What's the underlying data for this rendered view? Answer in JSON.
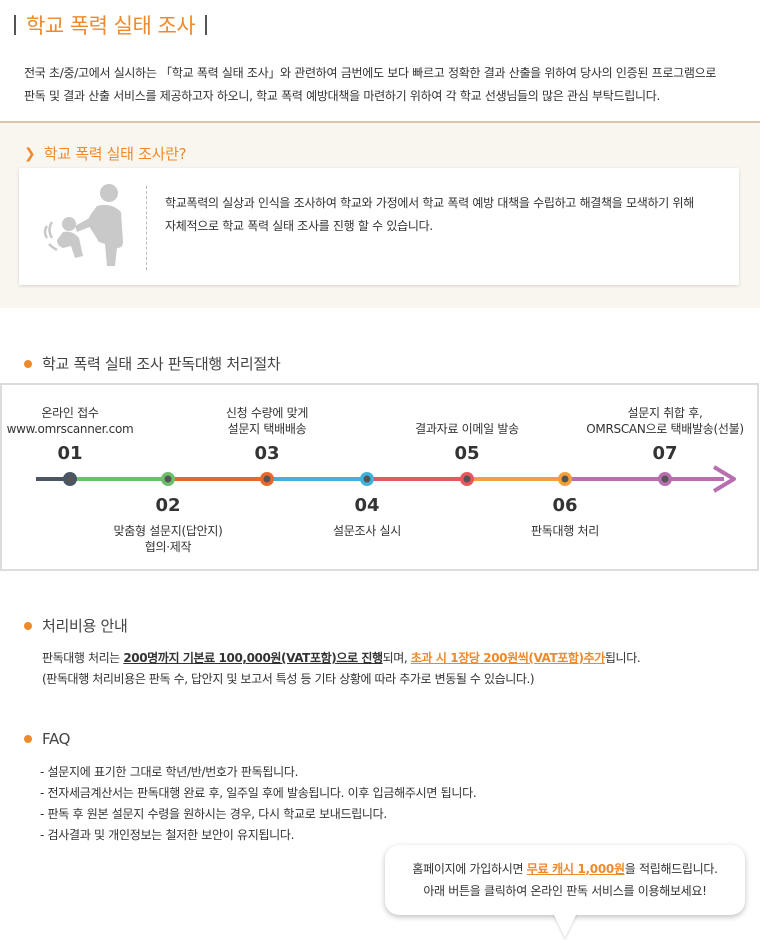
{
  "page_title": "학교 폭력 실태 조사",
  "intro": {
    "line1": "전국 초/중/고에서 실시하는 「학교 폭력 실태 조사」와 관련하여 금번에도 보다 빠르고 정확한 결과 산출을 위하여 당사의 인증된 프로그램으로",
    "line2": "판독 및 결과 산출 서비스를 제공하고자 하오니, 학교 폭력 예방대책을 마련하기 위하여 각 학교 선생님들의 많은 관심 부탁드립니다."
  },
  "what": {
    "heading": "학교 폭력 실태 조사란?",
    "icon": "violence-figure-icon",
    "line1": "학교폭력의 실상과 인식을 조사하여 학교와 가정에서 학교 폭력 예방 대책을 수립하고 해결책을 모색하기 위해",
    "line2": "자체적으로 학교 폭력 실태 조사를 진행 할 수 있습니다."
  },
  "process": {
    "heading": "학교 폭력 실태 조사 판독대행 처리절차",
    "steps": [
      {
        "num": "01",
        "line1": "온라인 접수",
        "line2": "www.omrscanner.com",
        "color": "#4a5566"
      },
      {
        "num": "02",
        "line1": "맞춤형 설문지(답안지)",
        "line2": "협의·제작",
        "color": "#6cbf6b"
      },
      {
        "num": "03",
        "line1": "신청 수량에 맞게",
        "line2": "설문지 택배배송",
        "color": "#e8682a"
      },
      {
        "num": "04",
        "line1": "설문조사 실시",
        "line2": "",
        "color": "#3fb3dc"
      },
      {
        "num": "05",
        "line1": "결과자료 이메일 발송",
        "line2": "",
        "color": "#e8585a"
      },
      {
        "num": "06",
        "line1": "판독대행 처리",
        "line2": "",
        "color": "#f2a03c"
      },
      {
        "num": "07",
        "line1": "설문지 취합 후,",
        "line2": "OMRSCAN으로 택배발송(선불)",
        "color": "#b76fb0"
      }
    ]
  },
  "cost": {
    "heading": "처리비용 안내",
    "part1": "판독대행 처리는 ",
    "strong": "200명까지 기본료 100,000원(VAT포함)으로 진행",
    "part2": "되며, ",
    "orange": "초과 시 1장당 200원씩(VAT포함)추가",
    "part3": "됩니다.",
    "line2": "(판독대행 처리비용은 판독 수, 답안지 및 보고서 특성 등 기타 상황에 따라 추가로 변동될 수 있습니다.)"
  },
  "faq": {
    "heading": "FAQ",
    "items": [
      "- 설문지에 표기한 그대로 학년/반/번호가 판독됩니다.",
      "- 전자세금계산서는 판독대행 완료 후, 일주일 후에 발송됩니다. 이후 입금해주시면 됩니다.",
      "- 판독 후 원본 설문지 수령을 원하시는 경우, 다시 학교로 보내드립니다.",
      "- 검사결과 및 개인정보는 철저한 보안이 유지됩니다."
    ]
  },
  "bubble": {
    "part1": "홈페이지에 가입하시면 ",
    "orange": "무료 캐시 1,000원",
    "part2": "을 적립해드립니다.",
    "line2": "아래 버튼을 클릭하여 온라인 판독 서비스를 이용해보세요!"
  },
  "colors": {
    "accent": "#ee8a2c",
    "section_bg": "#f9f6f0",
    "border": "#dcdcdc"
  }
}
